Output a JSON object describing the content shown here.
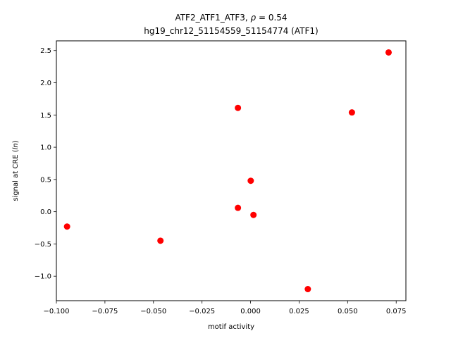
{
  "chart_data": {
    "type": "scatter",
    "title_line1_prefix": "ATF2_ATF1_ATF3, ",
    "title_rho_symbol": "ρ",
    "title_rho_value": " = 0.54",
    "title_line2": "hg19_chr12_51154559_51154774 (ATF1)",
    "xlabel": "motif activity",
    "ylabel_prefix": "signal at CRE (",
    "ylabel_italic": "ln",
    "ylabel_suffix": ")",
    "xlim": [
      -0.1,
      0.08
    ],
    "ylim": [
      -1.38,
      2.65
    ],
    "xticks": [
      -0.1,
      -0.075,
      -0.05,
      -0.025,
      0.0,
      0.025,
      0.05,
      0.075
    ],
    "xtick_labels": [
      "−0.100",
      "−0.075",
      "−0.050",
      "−0.025",
      "0.000",
      "0.025",
      "0.050",
      "0.075"
    ],
    "yticks": [
      -1.0,
      -0.5,
      0.0,
      0.5,
      1.0,
      1.5,
      2.0,
      2.5
    ],
    "ytick_labels": [
      "−1.0",
      "−0.5",
      "0.0",
      "0.5",
      "1.0",
      "1.5",
      "2.0",
      "2.5"
    ],
    "marker_color": "#ff0000",
    "points": [
      {
        "x": -0.0945,
        "y": -0.23
      },
      {
        "x": -0.0464,
        "y": -0.45
      },
      {
        "x": -0.0065,
        "y": 1.61
      },
      {
        "x": -0.0065,
        "y": 0.06
      },
      {
        "x": 0.0001,
        "y": 0.48
      },
      {
        "x": 0.0015,
        "y": -0.05
      },
      {
        "x": 0.0295,
        "y": -1.2
      },
      {
        "x": 0.0522,
        "y": 1.54
      },
      {
        "x": 0.0711,
        "y": 2.47
      }
    ]
  }
}
